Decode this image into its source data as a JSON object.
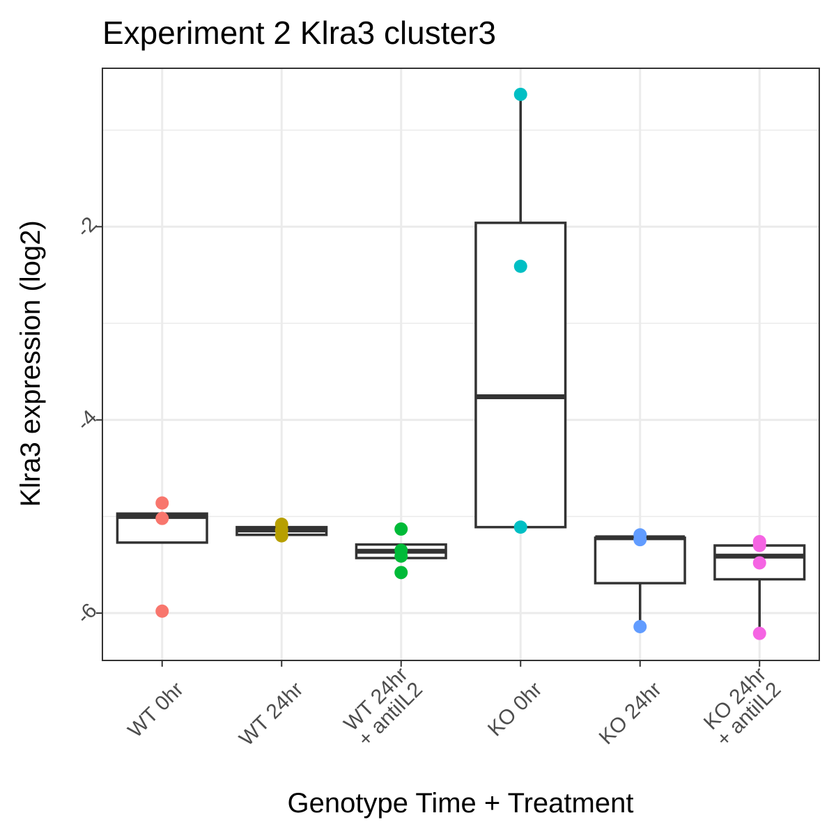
{
  "chart_data": {
    "type": "box",
    "title": "Experiment 2 Klra3 cluster3",
    "xlabel": "Genotype Time + Treatment",
    "ylabel": "Klra3 expression (log2)",
    "ylim": [
      -6.49,
      -0.36
    ],
    "y_ticks": [
      "-2",
      "-4",
      "-6"
    ],
    "y_tick_values": [
      -2,
      -4,
      -6
    ],
    "y_minor_ticks": [
      -1,
      -3,
      -5
    ],
    "grid": true,
    "legend": "none",
    "categories": [
      {
        "label_lines": [
          "WT 0hr"
        ],
        "color": "#F8766D",
        "box": {
          "q1": -5.27,
          "median": -5.0,
          "q3": -4.97,
          "whisker_low": -5.27,
          "whisker_high": -4.97
        },
        "points": [
          -4.86,
          -5.02,
          -5.98
        ]
      },
      {
        "label_lines": [
          "WT 24hr"
        ],
        "color": "#B79F00",
        "box": {
          "q1": -5.19,
          "median": -5.14,
          "q3": -5.11,
          "whisker_low": -5.19,
          "whisker_high": -5.11
        },
        "points": [
          -5.08,
          -5.14,
          -5.2
        ]
      },
      {
        "label_lines": [
          "WT 24hr",
          "+ antiIL2"
        ],
        "color": "#00BA38",
        "box": {
          "q1": -5.43,
          "median": -5.36,
          "q3": -5.29,
          "whisker_low": -5.43,
          "whisker_high": -5.29
        },
        "points": [
          -5.13,
          -5.35,
          -5.41,
          -5.58
        ]
      },
      {
        "label_lines": [
          "KO 0hr"
        ],
        "color": "#00BFC4",
        "box": {
          "q1": -5.11,
          "median": -3.76,
          "q3": -1.96,
          "whisker_low": -5.11,
          "whisker_high": -0.63
        },
        "points": [
          -0.63,
          -2.41,
          -5.11
        ]
      },
      {
        "label_lines": [
          "KO 24hr"
        ],
        "color": "#619CFF",
        "box": {
          "q1": -5.69,
          "median": -5.22,
          "q3": -5.22,
          "whisker_low": -6.14,
          "whisker_high": -5.22
        },
        "points": [
          -5.19,
          -5.24,
          -6.14
        ]
      },
      {
        "label_lines": [
          "KO 24hr",
          "+ antiIL2"
        ],
        "color": "#F564E3",
        "box": {
          "q1": -5.65,
          "median": -5.41,
          "q3": -5.3,
          "whisker_low": -6.21,
          "whisker_high": -5.3
        },
        "points": [
          -5.26,
          -5.3,
          -5.48,
          -6.21
        ]
      }
    ]
  }
}
